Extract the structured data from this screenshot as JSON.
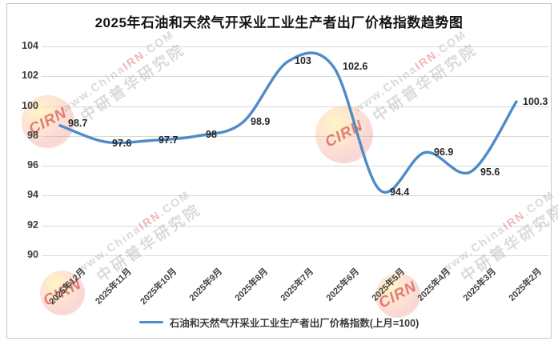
{
  "chart_data": {
    "type": "line",
    "title": "2025年石油和天然气开采业工业生产者出厂价格指数趋势图",
    "categories": [
      "2025年12月",
      "2025年11月",
      "2025年10月",
      "2025年9月",
      "2025年8月",
      "2025年7月",
      "2025年6月",
      "2025年5月",
      "2025年4月",
      "2025年3月",
      "2025年2月"
    ],
    "series": [
      {
        "name": "石油和天然气开采业工业生产者出厂价格指数(上月=100)",
        "values": [
          98.7,
          97.6,
          97.7,
          98,
          98.9,
          103,
          102.6,
          94.4,
          96.9,
          95.6,
          100.3
        ]
      }
    ],
    "data_labels": [
      "98.7",
      "97.6",
      "97.7",
      "98",
      "98.9",
      "103",
      "102.6",
      "94.4",
      "96.9",
      "95.6",
      "100.3"
    ],
    "xlabel": "",
    "ylabel": "",
    "ylim": [
      90,
      104
    ],
    "yticks": [
      104,
      102,
      100,
      98,
      96,
      94,
      92,
      90
    ],
    "grid": true,
    "legend_position": "bottom",
    "line_color": "#4E8CC8",
    "grid_color": "#d9d9d9",
    "label_color": "#262626"
  },
  "watermark": {
    "en_pre": "www.China",
    "en_mid": "IRN",
    "en_post": ".COM",
    "cn": "中研普华研究院",
    "logo": "CIRN"
  }
}
